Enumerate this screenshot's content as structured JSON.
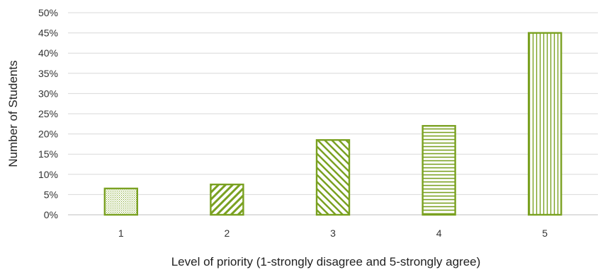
{
  "chart_data": {
    "type": "bar",
    "categories": [
      "1",
      "2",
      "3",
      "4",
      "5"
    ],
    "values": [
      6.5,
      7.5,
      18.5,
      22,
      45
    ],
    "value_unit": "%",
    "xlabel": "Level of priority (1-strongly disagree and 5-strongly agree)",
    "ylabel": "Number of Students",
    "ylim": [
      0,
      50
    ],
    "yticks": [
      "0%",
      "5%",
      "10%",
      "15%",
      "20%",
      "25%",
      "30%",
      "35%",
      "40%",
      "45%",
      "50%"
    ],
    "grid": true,
    "legend": "none",
    "bar_color": "#7aa121",
    "bar_patterns": [
      "dots",
      "diagonal-up",
      "diagonal-down",
      "horizontal",
      "vertical"
    ]
  }
}
